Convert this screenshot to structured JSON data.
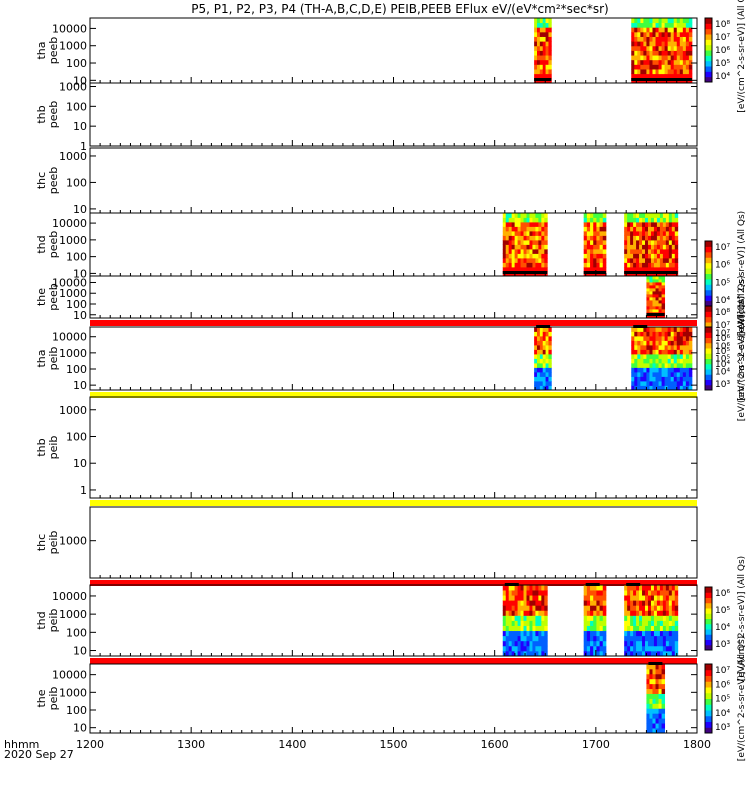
{
  "title": "P5, P1, P2, P3, P4 (TH-A,B,C,D,E) PEIB,PEEB EFlux eV/(eV*cm²*sec*sr)",
  "footer": {
    "time_label": "hhmm",
    "date_label": "2020 Sep 27"
  },
  "chart_data": {
    "type": "heatmap",
    "x_axis": {
      "range": [
        1200,
        1800
      ],
      "ticks": [
        "1200",
        "1300",
        "1400",
        "1500",
        "1600",
        "1700",
        "1800"
      ]
    },
    "panels": [
      {
        "probe": "tha",
        "species": "peeb",
        "y_ticks": [
          "10",
          "100",
          "1000",
          "10000"
        ],
        "y_range": [
          7,
          40000
        ],
        "bar_above": null,
        "intervals": [
          [
            1639,
            1656
          ],
          [
            1735,
            1795
          ]
        ],
        "colorbar": {
          "labels": [
            "10⁸",
            "10⁷",
            "10⁶",
            "10⁵",
            "10⁴"
          ],
          "title": "[eV/(cm^2-s-sr-eV)] (All Qs)"
        }
      },
      {
        "probe": "thb",
        "species": "peeb",
        "y_ticks": [
          "1",
          "10",
          "100",
          "1000"
        ],
        "y_range": [
          1,
          1500
        ],
        "bar_above": null,
        "intervals": [],
        "colorbar": null
      },
      {
        "probe": "thc",
        "species": "peeb",
        "y_ticks": [
          "10",
          "100",
          "1000"
        ],
        "y_range": [
          7,
          2000
        ],
        "bar_above": null,
        "intervals": [],
        "colorbar": null
      },
      {
        "probe": "thd",
        "species": "peeb",
        "y_ticks": [
          "10",
          "100",
          "1000",
          "10000"
        ],
        "y_range": [
          7,
          40000
        ],
        "bar_above": null,
        "intervals": [
          [
            1608,
            1652
          ],
          [
            1688,
            1710
          ],
          [
            1728,
            1781
          ]
        ],
        "colorbar": {
          "labels": [
            "10⁷",
            "10⁶",
            "10⁵",
            "10⁴"
          ],
          "title": "[eV/(cm^2-s-sr-eV)] (All Qs)"
        }
      },
      {
        "probe": "the",
        "species": "peeb",
        "y_ticks": [
          "10",
          "100",
          "1000",
          "10000"
        ],
        "y_range": [
          5,
          40000
        ],
        "bar_above": null,
        "intervals": [
          [
            1750,
            1768
          ]
        ],
        "colorbar": {
          "labels": [
            "10⁸",
            "10⁷",
            "10⁶",
            "10⁵",
            "10⁴"
          ],
          "title": "[eV/(cm^2-s-sr-eV)] (All Qs)"
        }
      },
      {
        "probe": "tha",
        "species": "peib",
        "y_ticks": [
          "10",
          "100",
          "1000",
          "10000"
        ],
        "y_range": [
          5,
          40000
        ],
        "bar_above": "#ff0000",
        "intervals": [
          [
            1639,
            1656
          ],
          [
            1735,
            1795
          ]
        ],
        "colorbar": {
          "labels": [
            "10⁷",
            "10⁶",
            "10⁵",
            "10⁴",
            "10³"
          ],
          "title": "[eV/(cm^2-s-sr-eV)] (All Qs)"
        }
      },
      {
        "probe": "thb",
        "species": "peib",
        "y_ticks": [
          "1",
          "10",
          "100",
          "1000"
        ],
        "y_range": [
          0.5,
          3000
        ],
        "bar_above": "#ffff00",
        "intervals": [],
        "colorbar": null
      },
      {
        "probe": "thc",
        "species": "peib",
        "y_ticks": [
          "1000"
        ],
        "y_range": [
          100,
          8000
        ],
        "bar_above": "#ffff00",
        "intervals": [],
        "colorbar": null
      },
      {
        "probe": "thd",
        "species": "peib",
        "y_ticks": [
          "10",
          "100",
          "1000",
          "10000"
        ],
        "y_range": [
          5,
          40000
        ],
        "bar_above": "#ff0000",
        "intervals": [
          [
            1608,
            1652
          ],
          [
            1688,
            1710
          ],
          [
            1728,
            1781
          ]
        ],
        "colorbar": {
          "labels": [
            "10⁶",
            "10⁵",
            "10⁴",
            "10³"
          ],
          "title": "[eV/(cm^2-s-sr-eV)] (All Qs)"
        }
      },
      {
        "probe": "the",
        "species": "peib",
        "y_ticks": [
          "10",
          "100",
          "1000",
          "10000"
        ],
        "y_range": [
          5,
          40000
        ],
        "bar_above": "#ff0000",
        "intervals": [
          [
            1750,
            1768
          ]
        ],
        "colorbar": {
          "labels": [
            "10⁷",
            "10⁶",
            "10⁵",
            "10⁴",
            "10³"
          ],
          "title": "[eV/(cm^2-s-sr-eV)] (All Qs)"
        }
      }
    ],
    "colormap": [
      "#400080",
      "#2000ff",
      "#0060ff",
      "#00c0ff",
      "#00ffc0",
      "#40ff40",
      "#c0ff00",
      "#ffff00",
      "#ffb000",
      "#ff5000",
      "#ff0000",
      "#a00000"
    ]
  }
}
